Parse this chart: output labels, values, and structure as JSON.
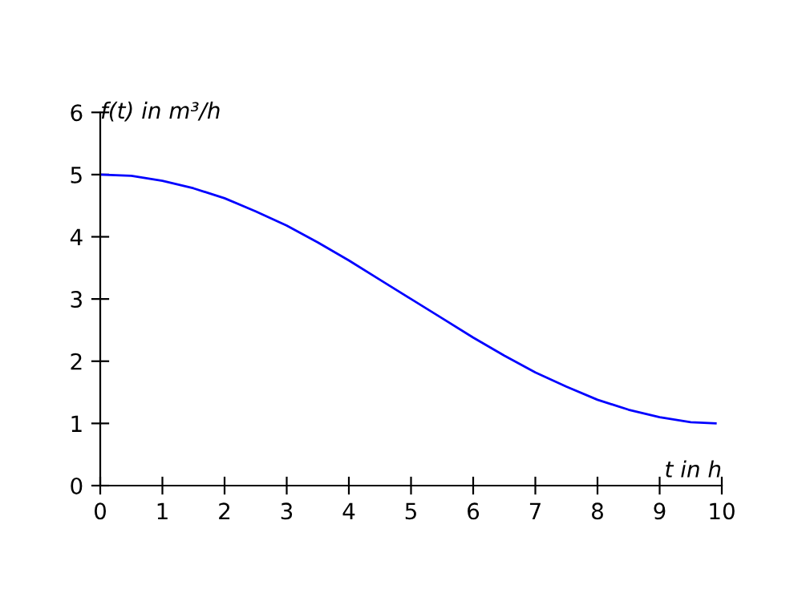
{
  "chart_data": {
    "type": "line",
    "xlabel": "t in h",
    "ylabel": "f(t) in m³/h",
    "x": [
      0,
      0.5,
      1,
      1.5,
      2,
      2.5,
      3,
      3.5,
      4,
      4.5,
      5,
      5.5,
      6,
      6.5,
      7,
      7.5,
      8,
      8.5,
      9,
      9.5,
      9.9
    ],
    "series": [
      {
        "color": "#0000ff",
        "values": [
          5,
          4.98,
          4.9,
          4.78,
          4.62,
          4.41,
          4.18,
          3.91,
          3.62,
          3.31,
          3,
          2.69,
          2.38,
          2.09,
          1.82,
          1.59,
          1.38,
          1.22,
          1.1,
          1.02,
          1
        ]
      }
    ],
    "xlim": [
      0,
      10
    ],
    "ylim": [
      0,
      6
    ],
    "xticks": [
      0,
      1,
      2,
      3,
      4,
      5,
      6,
      7,
      8,
      9,
      10
    ],
    "yticks": [
      0,
      1,
      2,
      3,
      4,
      5,
      6
    ],
    "grid": false,
    "legend": false,
    "line_style": "solid",
    "marker": "none"
  }
}
